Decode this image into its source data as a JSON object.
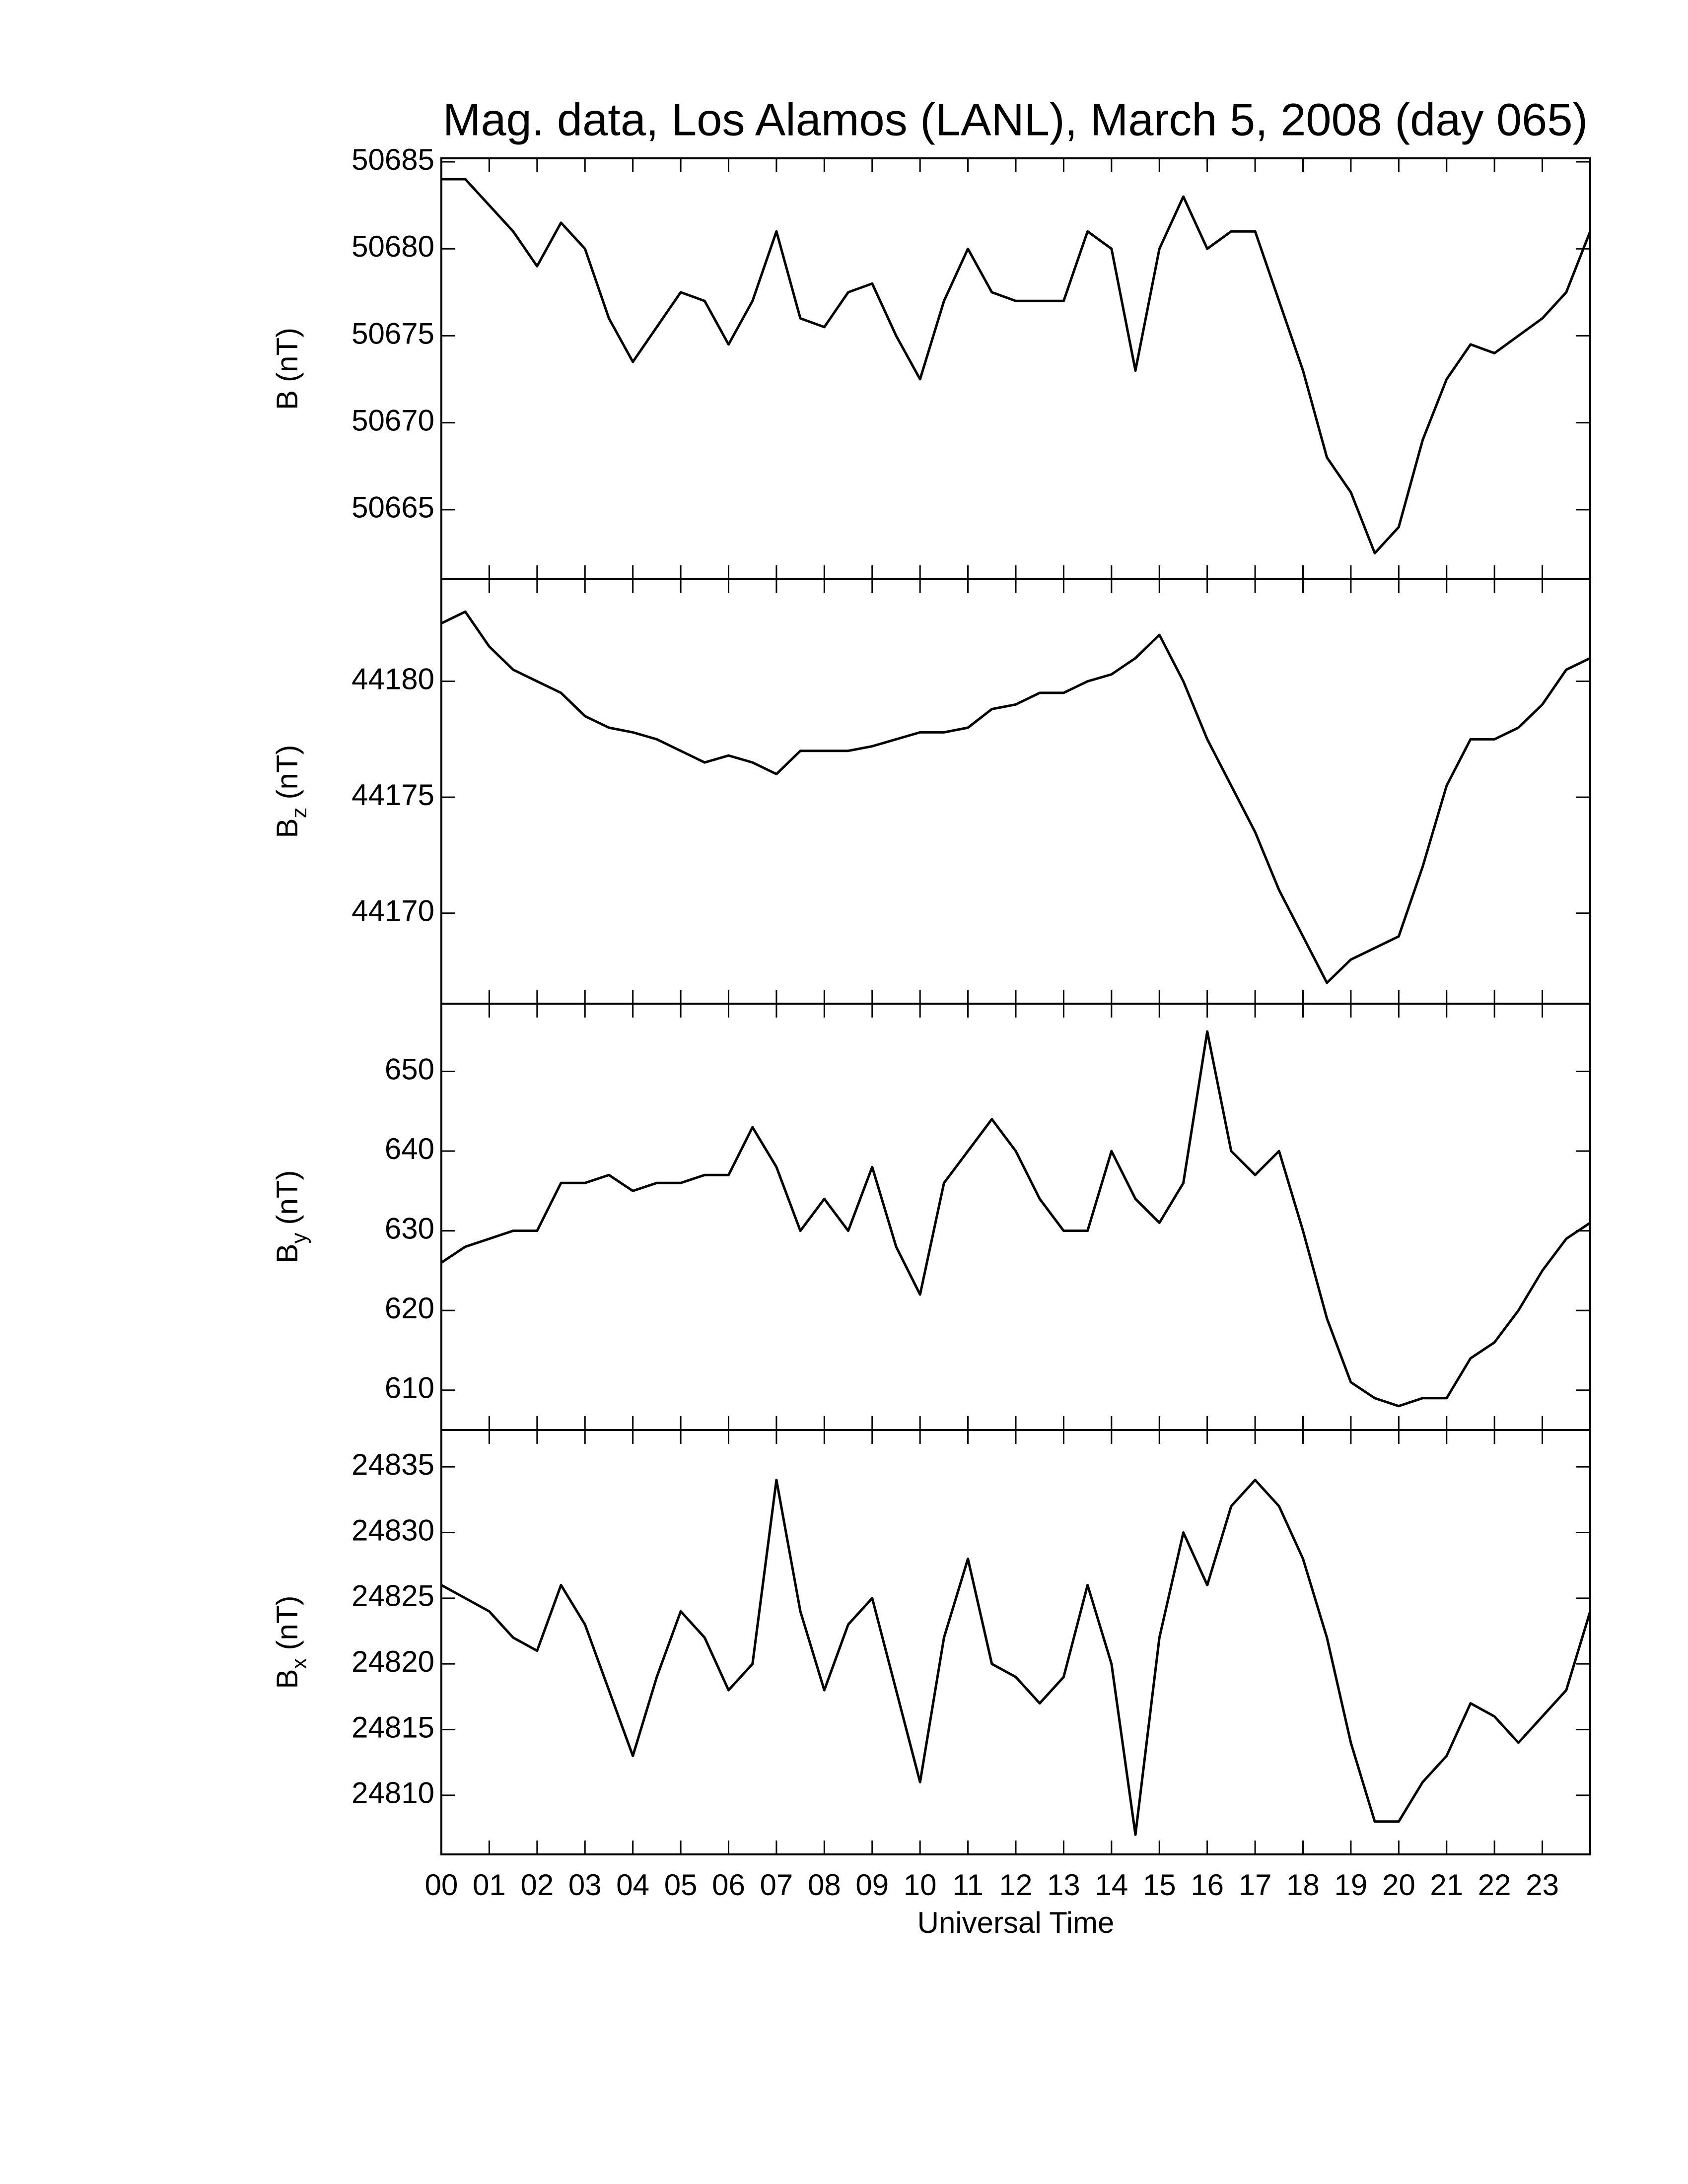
{
  "chart_data": [
    {
      "type": "line",
      "title": "Mag. data, Los Alamos (LANL), March 5, 2008 (day 065)",
      "ylabel": [
        "B",
        "",
        "(nT)"
      ],
      "color": "#000000",
      "xlim": [
        0,
        24
      ],
      "ylim": [
        50661,
        50685.2
      ],
      "yticks": [
        50665,
        50670,
        50675,
        50680,
        50685
      ],
      "x": [
        0,
        0.5,
        1,
        1.5,
        2,
        2.5,
        3,
        3.5,
        4,
        4.5,
        5,
        5.5,
        6,
        6.5,
        7,
        7.5,
        8,
        8.5,
        9,
        9.5,
        10,
        10.5,
        11,
        11.5,
        12,
        12.5,
        13,
        13.5,
        14,
        14.5,
        15,
        15.5,
        16,
        16.5,
        17,
        17.5,
        18,
        18.5,
        19,
        19.5,
        20,
        20.5,
        21,
        21.5,
        22,
        22.5,
        23,
        23.5,
        24
      ],
      "values": [
        50684,
        50684,
        50682.5,
        50681,
        50679,
        50681.5,
        50680,
        50676,
        50673.5,
        50675.5,
        50677.5,
        50677,
        50674.5,
        50677,
        50681,
        50676,
        50675.5,
        50677.5,
        50678,
        50675,
        50672.5,
        50677,
        50680,
        50677.5,
        50677,
        50677,
        50677,
        50681,
        50680,
        50673,
        50680,
        50683,
        50680,
        50681,
        50681,
        50677,
        50673,
        50668,
        50666,
        50662.5,
        50664,
        50669,
        50672.5,
        50674.5,
        50674,
        50675,
        50676,
        50677.5,
        50681
      ]
    },
    {
      "type": "line",
      "ylabel": [
        "B",
        "z",
        "(nT)"
      ],
      "color": "#000000",
      "xlim": [
        0,
        24
      ],
      "ylim": [
        44166.1,
        44184.4
      ],
      "yticks": [
        44170,
        44175,
        44180
      ],
      "x": [
        0,
        0.5,
        1,
        1.5,
        2,
        2.5,
        3,
        3.5,
        4,
        4.5,
        5,
        5.5,
        6,
        6.5,
        7,
        7.5,
        8,
        8.5,
        9,
        9.5,
        10,
        10.5,
        11,
        11.5,
        12,
        12.5,
        13,
        13.5,
        14,
        14.5,
        15,
        15.5,
        16,
        16.5,
        17,
        17.5,
        18,
        18.5,
        19,
        19.5,
        20,
        20.5,
        21,
        21.5,
        22,
        22.5,
        23,
        23.5,
        24
      ],
      "values": [
        44182.5,
        44183,
        44181.5,
        44180.5,
        44180,
        44179.5,
        44178.5,
        44178,
        44177.8,
        44177.5,
        44177,
        44176.5,
        44176.8,
        44176.5,
        44176,
        44177,
        44177,
        44177,
        44177.2,
        44177.5,
        44177.8,
        44177.8,
        44178,
        44178.8,
        44179,
        44179.5,
        44179.5,
        44180,
        44180.3,
        44181,
        44182,
        44180,
        44177.5,
        44175.5,
        44173.5,
        44171,
        44169,
        44167,
        44168,
        44168.5,
        44169,
        44172,
        44175.5,
        44177.5,
        44177.5,
        44178,
        44179,
        44180.5,
        44181
      ]
    },
    {
      "type": "line",
      "ylabel": [
        "B",
        "y",
        "(nT)"
      ],
      "color": "#000000",
      "xlim": [
        0,
        24
      ],
      "ylim": [
        605,
        658.5
      ],
      "yticks": [
        610,
        620,
        630,
        640,
        650
      ],
      "x": [
        0,
        0.5,
        1,
        1.5,
        2,
        2.5,
        3,
        3.5,
        4,
        4.5,
        5,
        5.5,
        6,
        6.5,
        7,
        7.5,
        8,
        8.5,
        9,
        9.5,
        10,
        10.5,
        11,
        11.5,
        12,
        12.5,
        13,
        13.5,
        14,
        14.5,
        15,
        15.5,
        16,
        16.5,
        17,
        17.5,
        18,
        18.5,
        19,
        19.5,
        20,
        20.5,
        21,
        21.5,
        22,
        22.5,
        23,
        23.5,
        24
      ],
      "values": [
        626,
        628,
        629,
        630,
        630,
        636,
        636,
        637,
        635,
        636,
        636,
        637,
        637,
        643,
        638,
        630,
        634,
        630,
        638,
        628,
        622,
        636,
        640,
        644,
        640,
        634,
        630,
        630,
        640,
        634,
        631,
        636,
        655,
        640,
        637,
        640,
        630,
        619,
        611,
        609,
        608,
        609,
        609,
        614,
        616,
        620,
        625,
        629,
        631
      ]
    },
    {
      "type": "line",
      "ylabel": [
        "B",
        "x",
        "(nT)"
      ],
      "xlabel": "Universal Time",
      "color": "#000000",
      "xlim": [
        0,
        24
      ],
      "ylim": [
        24805.5,
        24837.8
      ],
      "yticks": [
        24810,
        24815,
        24820,
        24825,
        24830,
        24835
      ],
      "xticks": [
        {
          "value": 0,
          "label": "00"
        },
        {
          "value": 1,
          "label": "01"
        },
        {
          "value": 2,
          "label": "02"
        },
        {
          "value": 3,
          "label": "03"
        },
        {
          "value": 4,
          "label": "04"
        },
        {
          "value": 5,
          "label": "05"
        },
        {
          "value": 6,
          "label": "06"
        },
        {
          "value": 7,
          "label": "07"
        },
        {
          "value": 8,
          "label": "08"
        },
        {
          "value": 9,
          "label": "09"
        },
        {
          "value": 10,
          "label": "10"
        },
        {
          "value": 11,
          "label": "11"
        },
        {
          "value": 12,
          "label": "12"
        },
        {
          "value": 13,
          "label": "13"
        },
        {
          "value": 14,
          "label": "14"
        },
        {
          "value": 15,
          "label": "15"
        },
        {
          "value": 16,
          "label": "16"
        },
        {
          "value": 17,
          "label": "17"
        },
        {
          "value": 18,
          "label": "18"
        },
        {
          "value": 19,
          "label": "19"
        },
        {
          "value": 20,
          "label": "20"
        },
        {
          "value": 21,
          "label": "21"
        },
        {
          "value": 22,
          "label": "22"
        },
        {
          "value": 23,
          "label": "23"
        }
      ],
      "x": [
        0,
        0.5,
        1,
        1.5,
        2,
        2.5,
        3,
        3.5,
        4,
        4.5,
        5,
        5.5,
        6,
        6.5,
        7,
        7.5,
        8,
        8.5,
        9,
        9.5,
        10,
        10.5,
        11,
        11.5,
        12,
        12.5,
        13,
        13.5,
        14,
        14.5,
        15,
        15.5,
        16,
        16.5,
        17,
        17.5,
        18,
        18.5,
        19,
        19.5,
        20,
        20.5,
        21,
        21.5,
        22,
        22.5,
        23,
        23.5,
        24
      ],
      "values": [
        24826,
        24825,
        24824,
        24822,
        24821,
        24826,
        24823,
        24818,
        24813,
        24819,
        24824,
        24822,
        24818,
        24820,
        24834,
        24824,
        24818,
        24823,
        24825,
        24818,
        24811,
        24822,
        24828,
        24820,
        24819,
        24817,
        24819,
        24826,
        24820,
        24807,
        24822,
        24830,
        24826,
        24832,
        24834,
        24832,
        24828,
        24822,
        24814,
        24808,
        24808,
        24811,
        24813,
        24817,
        24816,
        24814,
        24816,
        24818,
        24824
      ]
    }
  ]
}
